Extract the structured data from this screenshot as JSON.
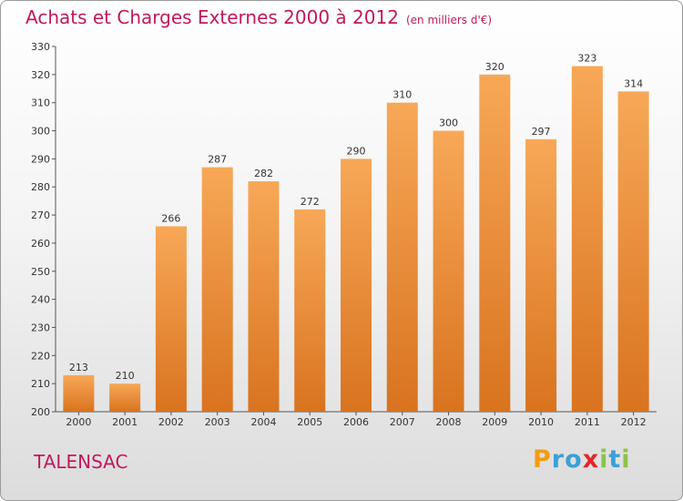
{
  "title": "Achats et Charges Externes 2000 à 2012",
  "unit": "(en milliers d'€)",
  "city": "TALENSAC",
  "logo": {
    "letters": [
      "P",
      "r",
      "o",
      "x",
      "i",
      "t",
      "i"
    ],
    "colors": [
      "#f39c12",
      "#3aa0d8",
      "#3aa0d8",
      "#e8232a",
      "#8bc34a",
      "#3aa0d8",
      "#8bc34a"
    ]
  },
  "colors": {
    "bar_light": "#f7a857",
    "bar_dark": "#d9731f",
    "accent": "#c2185b"
  },
  "chart_data": {
    "type": "bar",
    "categories": [
      "2000",
      "2001",
      "2002",
      "2003",
      "2004",
      "2005",
      "2006",
      "2007",
      "2008",
      "2009",
      "2010",
      "2011",
      "2012"
    ],
    "values": [
      213,
      210,
      266,
      287,
      282,
      272,
      290,
      310,
      300,
      320,
      297,
      323,
      314
    ],
    "title": "Achats et Charges Externes 2000 à 2012",
    "xlabel": "",
    "ylabel": "",
    "ylim": [
      200,
      330
    ],
    "yticks": [
      200,
      210,
      220,
      230,
      240,
      250,
      260,
      270,
      280,
      290,
      300,
      310,
      320,
      330
    ],
    "grid": false,
    "data_labels": true
  }
}
